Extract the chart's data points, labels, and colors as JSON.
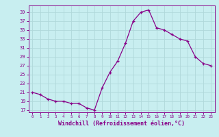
{
  "hours": [
    0,
    1,
    2,
    3,
    4,
    5,
    6,
    7,
    8,
    9,
    10,
    11,
    12,
    13,
    14,
    15,
    16,
    17,
    18,
    19,
    20,
    21,
    22,
    23
  ],
  "values": [
    21.0,
    20.5,
    19.5,
    19.0,
    19.0,
    18.5,
    18.5,
    17.5,
    17.0,
    22.0,
    25.5,
    28.0,
    32.0,
    37.0,
    39.0,
    39.5,
    35.5,
    35.0,
    34.0,
    33.0,
    32.5,
    29.0,
    27.5,
    27.0
  ],
  "bg_color": "#c8eef0",
  "grid_color": "#b0d8da",
  "line_color": "#880088",
  "marker_color": "#880088",
  "yticks": [
    17,
    19,
    21,
    23,
    25,
    27,
    29,
    31,
    33,
    35,
    37,
    39
  ],
  "xticks": [
    0,
    1,
    2,
    3,
    4,
    5,
    6,
    7,
    8,
    9,
    10,
    11,
    12,
    13,
    14,
    15,
    16,
    17,
    18,
    19,
    20,
    21,
    22,
    23
  ],
  "xlabel": "Windchill (Refroidissement éolien,°C)",
  "ylim": [
    16.5,
    40.5
  ],
  "xlim": [
    -0.5,
    23.5
  ],
  "title": ""
}
